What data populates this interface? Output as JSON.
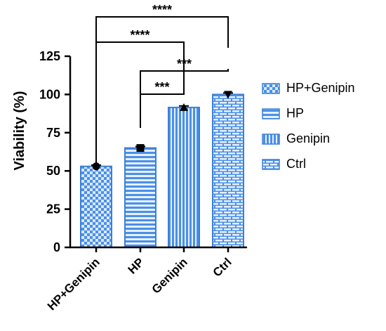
{
  "chart_data": {
    "type": "bar",
    "categories": [
      "HP+Genipin",
      "HP",
      "Genipin",
      "Ctrl"
    ],
    "values": [
      53,
      65,
      91.5,
      100
    ],
    "errors": [
      0.8,
      1.0,
      1.0,
      1.0
    ],
    "markers": [
      "circle",
      "square",
      "triangle",
      "triangle-down"
    ],
    "patterns": [
      "checker",
      "hstripe",
      "vstripe",
      "brick"
    ],
    "ylabel": "Viability (%)",
    "ylim": [
      0,
      125
    ],
    "yticks": [
      0,
      25,
      50,
      75,
      100,
      125
    ],
    "legend": {
      "placement": "right",
      "entries": [
        "HP+Genipin",
        "HP",
        "Genipin",
        "Ctrl"
      ]
    },
    "significance": [
      {
        "from": "HP+Genipin",
        "to": "Ctrl",
        "label": "****"
      },
      {
        "from": "HP+Genipin",
        "to": "Genipin",
        "label": "****"
      },
      {
        "from": "HP",
        "to": "Ctrl",
        "label": "***"
      },
      {
        "from": "HP",
        "to": "Genipin",
        "label": "***"
      }
    ],
    "colors": {
      "bar_fill": "#4a90e8",
      "bar_light": "#d9e8fb",
      "bar_edge": "#3d7fd6",
      "axis": "#000000"
    }
  }
}
